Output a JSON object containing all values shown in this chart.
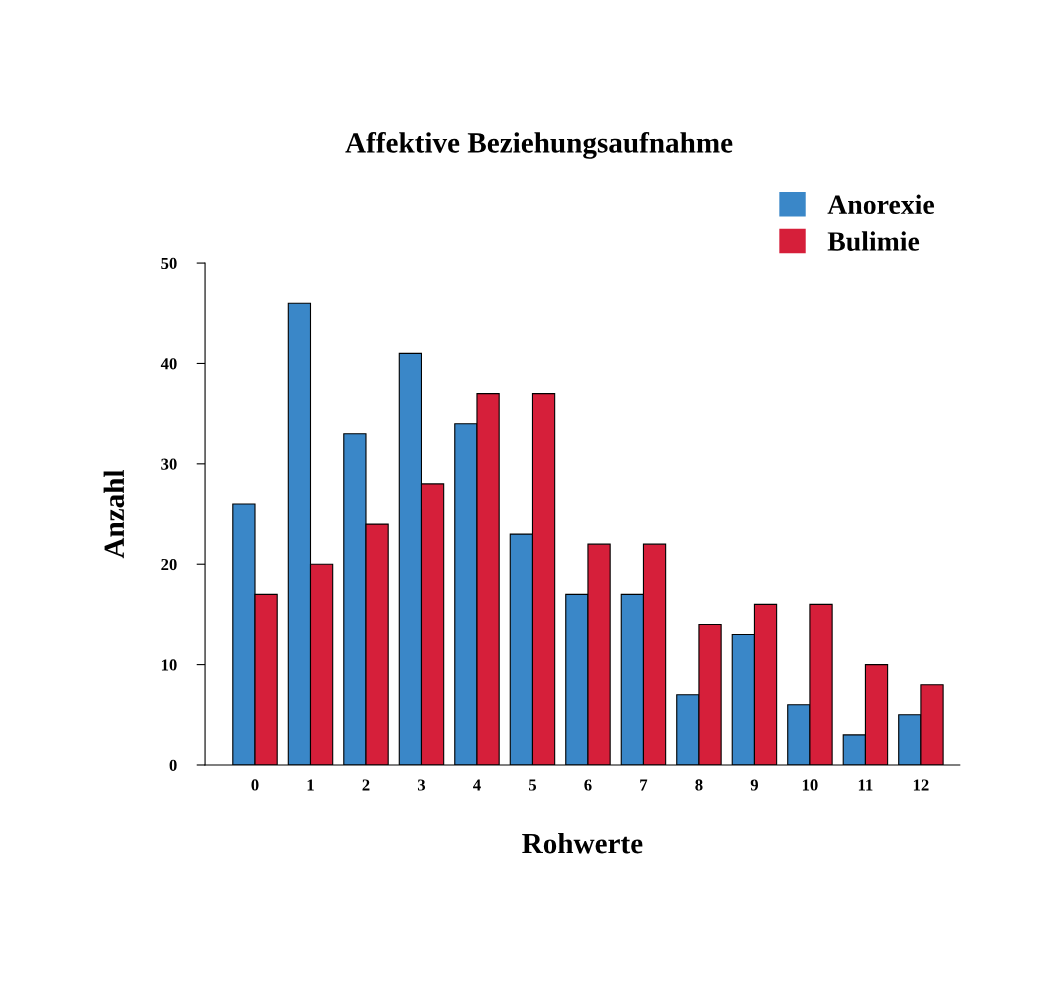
{
  "chart_data": {
    "type": "bar",
    "title": "Affektive Beziehungsaufnahme",
    "xlabel": "Rohwerte",
    "ylabel": "Anzahl",
    "categories": [
      "0",
      "1",
      "2",
      "3",
      "4",
      "5",
      "6",
      "7",
      "8",
      "9",
      "10",
      "11",
      "12"
    ],
    "series": [
      {
        "name": "Anorexie",
        "color": "#3a87c8",
        "values": [
          26,
          46,
          33,
          41,
          34,
          23,
          17,
          17,
          7,
          13,
          6,
          3,
          5
        ]
      },
      {
        "name": "Bulimie",
        "color": "#d61f3a",
        "values": [
          17,
          20,
          24,
          28,
          37,
          37,
          22,
          22,
          14,
          16,
          16,
          10,
          8
        ]
      }
    ],
    "ylim": [
      0,
      50
    ],
    "yticks": [
      0,
      10,
      20,
      30,
      40,
      50
    ],
    "grid": false,
    "legend": "top right"
  }
}
